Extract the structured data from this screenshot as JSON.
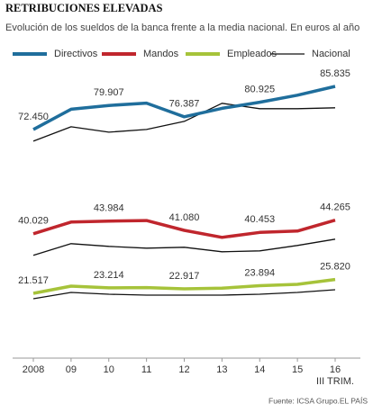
{
  "chart_data": {
    "type": "line",
    "title": "RETRIBUCIONES ELEVADAS",
    "subtitle": "Evolución de los sueldos de la banca frente a la media nacional. En euros al año",
    "categories": [
      "2008",
      "09",
      "10",
      "11",
      "12",
      "13",
      "14",
      "15",
      "16"
    ],
    "x_sublabel": "III TRIM.",
    "series": [
      {
        "name": "Directivos",
        "color": "#1f6e9c",
        "values": [
          72450,
          78730,
          79907,
          80640,
          76387,
          79000,
          80925,
          83100,
          85835
        ],
        "value_labels": [
          "72.450",
          null,
          "79.907",
          null,
          "76.387",
          null,
          "80.925",
          null,
          "85.835"
        ]
      },
      {
        "name": "Mandos",
        "color": "#c0262d",
        "values": [
          40029,
          43670,
          43984,
          44150,
          41080,
          38910,
          40453,
          40870,
          44265
        ],
        "value_labels": [
          "40.029",
          null,
          "43.984",
          null,
          "41.080",
          null,
          "40.453",
          null,
          "44.265"
        ]
      },
      {
        "name": "Empleados",
        "color": "#a6c33a",
        "values": [
          21517,
          23760,
          23214,
          23300,
          22917,
          23100,
          23894,
          24320,
          25820
        ],
        "value_labels": [
          "21.517",
          null,
          "23.214",
          null,
          "22.917",
          null,
          "23.894",
          null,
          "25.820"
        ]
      },
      {
        "name": "Nacional",
        "color": "#111111",
        "lines": [
          [
            68810,
            73290,
            71610,
            72450,
            74970,
            80570,
            78890,
            78890,
            79170
          ],
          [
            33310,
            36950,
            36110,
            35550,
            35830,
            34430,
            34710,
            36390,
            38350
          ],
          [
            19840,
            21800,
            21240,
            20960,
            20960,
            20960,
            21240,
            21800,
            22640
          ]
        ]
      }
    ],
    "source": "Fuente: ICSA Grupo.",
    "publisher": "EL PAÍS"
  }
}
